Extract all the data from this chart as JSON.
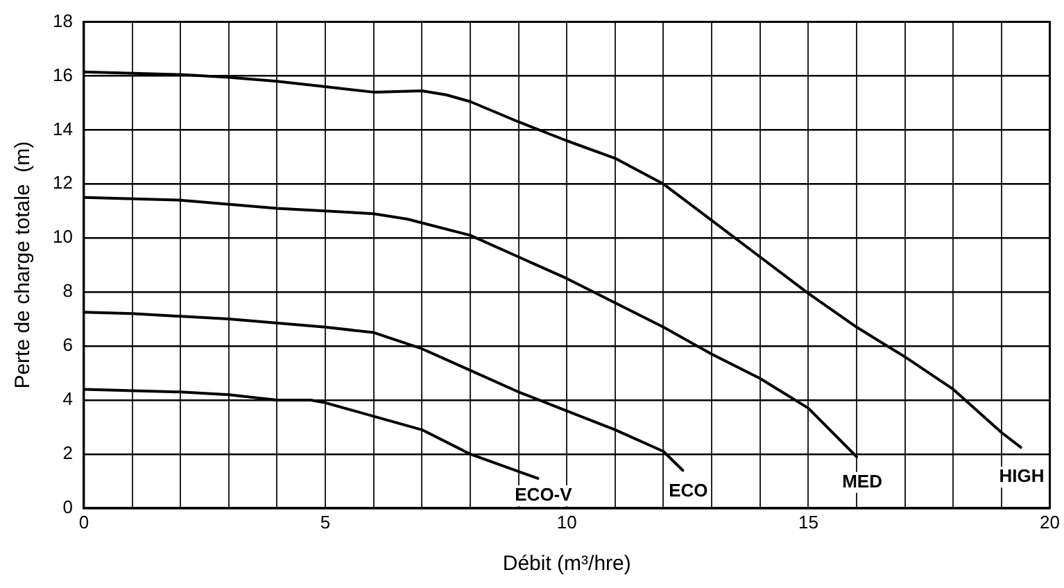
{
  "chart_data": {
    "type": "line",
    "xlabel": "Débit (m³/hre)",
    "ylabel": "Perte de charge totale  (m)",
    "xlim": [
      0,
      20
    ],
    "ylim": [
      0,
      18
    ],
    "xticks": [
      0,
      {
        "value": 1,
        "label": null
      },
      {
        "value": 2,
        "label": null
      },
      {
        "value": 3,
        "label": null
      },
      {
        "value": 4,
        "label": null
      },
      5,
      {
        "value": 6,
        "label": null
      },
      {
        "value": 7,
        "label": null
      },
      {
        "value": 8,
        "label": null
      },
      {
        "value": 9,
        "label": null
      },
      10,
      {
        "value": 11,
        "label": null
      },
      {
        "value": 12,
        "label": null
      },
      {
        "value": 13,
        "label": null
      },
      {
        "value": 14,
        "label": null
      },
      15,
      {
        "value": 16,
        "label": null
      },
      {
        "value": 17,
        "label": null
      },
      {
        "value": 18,
        "label": null
      },
      {
        "value": 19,
        "label": null
      },
      20
    ],
    "yticks": [
      0,
      2,
      4,
      6,
      8,
      10,
      12,
      14,
      16,
      18
    ],
    "grid": true,
    "legend": false,
    "marker": "none",
    "line_style": "solid",
    "series": [
      {
        "name": "ECO-V",
        "color": "#000000",
        "x": [
          0,
          2,
          3,
          4,
          4.7,
          5,
          6,
          7,
          8,
          9.4
        ],
        "values": [
          4.4,
          4.3,
          4.2,
          4.0,
          4.0,
          3.9,
          3.4,
          2.9,
          2.0,
          1.1
        ]
      },
      {
        "name": "ECO",
        "color": "#000000",
        "x": [
          0,
          1,
          3,
          5,
          6,
          7,
          8,
          9,
          10,
          11,
          12,
          12.4
        ],
        "values": [
          7.25,
          7.2,
          7.0,
          6.7,
          6.5,
          5.9,
          5.1,
          4.3,
          3.6,
          2.9,
          2.1,
          1.4
        ]
      },
      {
        "name": "MED",
        "color": "#000000",
        "x": [
          0,
          2,
          4,
          5,
          6,
          6.7,
          8,
          9,
          10,
          11,
          12,
          13,
          14,
          15,
          16
        ],
        "values": [
          11.5,
          11.4,
          11.1,
          11.0,
          10.9,
          10.7,
          10.1,
          9.3,
          8.5,
          7.6,
          6.7,
          5.7,
          4.8,
          3.7,
          1.9
        ]
      },
      {
        "name": "HIGH",
        "color": "#000000",
        "x": [
          0,
          2,
          3,
          4,
          5,
          6,
          7,
          7.5,
          8,
          9,
          10,
          11,
          12,
          13,
          14,
          15,
          16,
          17,
          18,
          19,
          19.4
        ],
        "values": [
          16.15,
          16.05,
          15.95,
          15.8,
          15.6,
          15.4,
          15.45,
          15.3,
          15.05,
          14.3,
          13.6,
          12.95,
          12.0,
          10.65,
          9.3,
          7.95,
          6.7,
          5.6,
          4.4,
          2.8,
          2.25
        ]
      }
    ]
  }
}
